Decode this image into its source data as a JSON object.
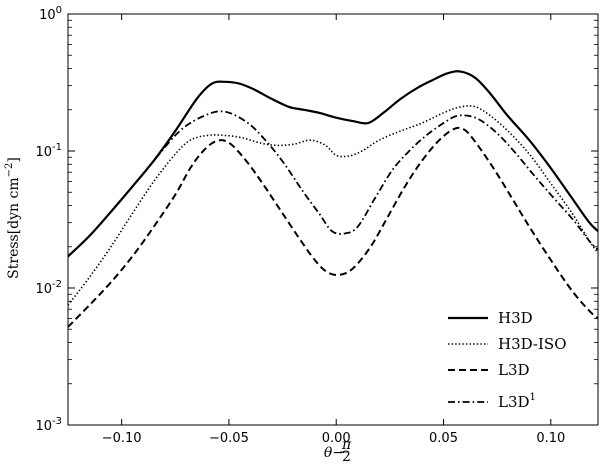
{
  "chart_data": {
    "type": "line",
    "title": "",
    "xlabel": {
      "base": "θ−",
      "frac_num": "π",
      "frac_den": "2"
    },
    "ylabel": {
      "base": "Stress[dyn cm",
      "exp": "−2",
      "close": "]"
    },
    "xlim": [
      -0.125,
      0.122
    ],
    "ylim": [
      0.001,
      1.0
    ],
    "yscale": "log",
    "grid": false,
    "legend_position": "lower-right",
    "x_ticks": [
      {
        "value": -0.1,
        "label": "−0.10"
      },
      {
        "value": -0.05,
        "label": "−0.05"
      },
      {
        "value": 0.0,
        "label": "0.00"
      },
      {
        "value": 0.05,
        "label": "0.05"
      },
      {
        "value": 0.1,
        "label": "0.10"
      }
    ],
    "y_ticks": [
      {
        "value": 0.001,
        "base": "10",
        "exp": "-3"
      },
      {
        "value": 0.01,
        "base": "10",
        "exp": "-2"
      },
      {
        "value": 0.1,
        "base": "10",
        "exp": "-1"
      },
      {
        "value": 1.0,
        "base": "10",
        "exp": "0"
      }
    ],
    "series": [
      {
        "name": "H3D",
        "sup": "",
        "dash": "solid",
        "width": 2.2,
        "x": [
          -0.125,
          -0.115,
          -0.105,
          -0.095,
          -0.085,
          -0.075,
          -0.065,
          -0.058,
          -0.052,
          -0.045,
          -0.038,
          -0.03,
          -0.022,
          -0.015,
          -0.008,
          0.0,
          0.008,
          0.015,
          0.022,
          0.03,
          0.038,
          0.045,
          0.052,
          0.058,
          0.065,
          0.072,
          0.08,
          0.09,
          0.1,
          0.11,
          0.118,
          0.122
        ],
        "y": [
          0.017,
          0.024,
          0.036,
          0.055,
          0.085,
          0.14,
          0.24,
          0.31,
          0.32,
          0.31,
          0.28,
          0.24,
          0.21,
          0.2,
          0.19,
          0.175,
          0.165,
          0.16,
          0.19,
          0.24,
          0.29,
          0.33,
          0.37,
          0.38,
          0.34,
          0.26,
          0.18,
          0.12,
          0.075,
          0.045,
          0.03,
          0.026
        ]
      },
      {
        "name": "H3D-ISO",
        "sup": "",
        "dash": "dotted",
        "width": 1.6,
        "x": [
          -0.125,
          -0.115,
          -0.105,
          -0.095,
          -0.085,
          -0.075,
          -0.068,
          -0.06,
          -0.052,
          -0.044,
          -0.036,
          -0.028,
          -0.02,
          -0.012,
          -0.005,
          0.0,
          0.006,
          0.012,
          0.02,
          0.03,
          0.04,
          0.05,
          0.058,
          0.065,
          0.072,
          0.08,
          0.09,
          0.1,
          0.11,
          0.118,
          0.122
        ],
        "y": [
          0.0075,
          0.012,
          0.02,
          0.035,
          0.06,
          0.095,
          0.12,
          0.13,
          0.13,
          0.125,
          0.115,
          0.11,
          0.112,
          0.12,
          0.11,
          0.093,
          0.092,
          0.1,
          0.12,
          0.14,
          0.16,
          0.19,
          0.21,
          0.21,
          0.18,
          0.14,
          0.095,
          0.058,
          0.035,
          0.022,
          0.018
        ]
      },
      {
        "name": "L3D",
        "sup": "",
        "dash": "dashed",
        "width": 2.0,
        "x": [
          -0.125,
          -0.115,
          -0.105,
          -0.095,
          -0.085,
          -0.075,
          -0.068,
          -0.062,
          -0.056,
          -0.05,
          -0.042,
          -0.034,
          -0.026,
          -0.018,
          -0.01,
          -0.004,
          0.002,
          0.008,
          0.016,
          0.024,
          0.032,
          0.04,
          0.048,
          0.055,
          0.06,
          0.066,
          0.074,
          0.082,
          0.09,
          0.1,
          0.11,
          0.118,
          0.122
        ],
        "y": [
          0.0052,
          0.0075,
          0.011,
          0.017,
          0.028,
          0.048,
          0.075,
          0.1,
          0.118,
          0.115,
          0.085,
          0.057,
          0.037,
          0.024,
          0.016,
          0.013,
          0.0125,
          0.014,
          0.02,
          0.033,
          0.055,
          0.085,
          0.12,
          0.145,
          0.142,
          0.11,
          0.072,
          0.045,
          0.028,
          0.016,
          0.0095,
          0.0068,
          0.006
        ]
      },
      {
        "name": "L3D",
        "sup": "1",
        "dash": "dashdot",
        "width": 1.8,
        "x": [
          -0.125,
          -0.115,
          -0.105,
          -0.095,
          -0.085,
          -0.075,
          -0.068,
          -0.06,
          -0.054,
          -0.048,
          -0.04,
          -0.032,
          -0.024,
          -0.016,
          -0.008,
          -0.002,
          0.004,
          0.01,
          0.018,
          0.026,
          0.034,
          0.042,
          0.05,
          0.056,
          0.062,
          0.068,
          0.076,
          0.084,
          0.092,
          0.1,
          0.11,
          0.118,
          0.122
        ],
        "y": [
          0.017,
          0.024,
          0.036,
          0.055,
          0.085,
          0.13,
          0.16,
          0.185,
          0.195,
          0.185,
          0.155,
          0.115,
          0.08,
          0.052,
          0.035,
          0.026,
          0.025,
          0.028,
          0.045,
          0.072,
          0.1,
          0.13,
          0.16,
          0.18,
          0.18,
          0.165,
          0.13,
          0.095,
          0.067,
          0.048,
          0.032,
          0.022,
          0.019
        ]
      }
    ]
  }
}
